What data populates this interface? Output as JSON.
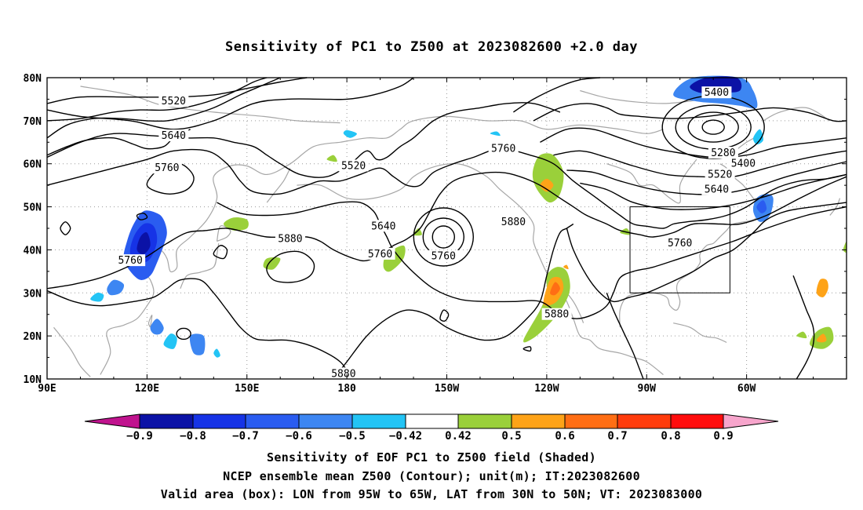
{
  "title": "Sensitivity of PC1 to Z500 at 2023082600 +2.0 day",
  "map": {
    "lat_labels": [
      "80N",
      "70N",
      "60N",
      "50N",
      "40N",
      "30N",
      "20N",
      "10N"
    ],
    "lon_labels": [
      "90E",
      "120E",
      "150E",
      "180",
      "150W",
      "120W",
      "90W",
      "60W"
    ],
    "contour_labels": [
      {
        "text": "5520",
        "lon": 128,
        "lat": 74.5
      },
      {
        "text": "5640",
        "lon": 128,
        "lat": 66.5
      },
      {
        "text": "5760",
        "lon": 126,
        "lat": 59.0
      },
      {
        "text": "5520",
        "lon": 182,
        "lat": 59.5
      },
      {
        "text": "5760",
        "lon": 227,
        "lat": 63.5
      },
      {
        "text": "5400",
        "lon": 291,
        "lat": 76.5
      },
      {
        "text": "5280",
        "lon": 293,
        "lat": 62.5
      },
      {
        "text": "5400",
        "lon": 299,
        "lat": 60.0
      },
      {
        "text": "5520",
        "lon": 292,
        "lat": 57.5
      },
      {
        "text": "5640",
        "lon": 291,
        "lat": 54.0
      },
      {
        "text": "5880",
        "lon": 230,
        "lat": 46.5
      },
      {
        "text": "5640",
        "lon": 191,
        "lat": 45.5
      },
      {
        "text": "5880",
        "lon": 163,
        "lat": 42.5
      },
      {
        "text": "5760",
        "lon": 190,
        "lat": 39.0
      },
      {
        "text": "5760",
        "lon": 209,
        "lat": 38.5
      },
      {
        "text": "5760",
        "lon": 115,
        "lat": 37.5
      },
      {
        "text": "5760",
        "lon": 280,
        "lat": 41.5
      },
      {
        "text": "5880",
        "lon": 243,
        "lat": 25.0
      },
      {
        "text": "5880",
        "lon": 179,
        "lat": 11.2
      }
    ],
    "valid_box": {
      "lon_min": 265,
      "lon_max": 295,
      "lat_min": 30,
      "lat_max": 50
    }
  },
  "colorbar": {
    "labels": [
      "-0.9",
      "-0.8",
      "-0.7",
      "-0.6",
      "-0.5",
      "-0.42",
      "0.42",
      "0.5",
      "0.6",
      "0.7",
      "0.8",
      "0.9"
    ],
    "colors": [
      "#c0138e",
      "#0b12a6",
      "#1633e6",
      "#2a5cf0",
      "#3d86f2",
      "#23c4f5",
      "#ffffff",
      "#9ad03a",
      "#fea318",
      "#ff6e14",
      "#ff3c0c",
      "#ff0d0d",
      "#f7a5cc"
    ]
  },
  "footer": {
    "line1": "Sensitivity of EOF PC1 to Z500 field (Shaded)",
    "line2": "NCEP ensemble mean Z500 (Contour); unit(m); IT:2023082600",
    "line3": "Valid area (box): LON from 95W to 65W, LAT from 30N to 50N; VT: 2023083000"
  }
}
